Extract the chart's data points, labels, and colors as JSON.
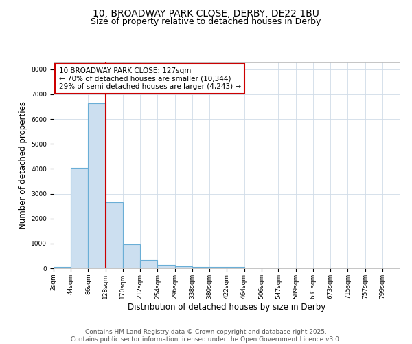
{
  "title_line1": "10, BROADWAY PARK CLOSE, DERBY, DE22 1BU",
  "title_line2": "Size of property relative to detached houses in Derby",
  "xlabel": "Distribution of detached houses by size in Derby",
  "ylabel": "Number of detached properties",
  "bin_edges": [
    2,
    44,
    86,
    128,
    170,
    212,
    254,
    296,
    338,
    380,
    422,
    464,
    506,
    547,
    589,
    631,
    673,
    715,
    757,
    799,
    841
  ],
  "bar_heights": [
    50,
    4050,
    6650,
    2650,
    980,
    340,
    130,
    80,
    50,
    50,
    55,
    0,
    0,
    0,
    0,
    0,
    0,
    0,
    0,
    0
  ],
  "bar_color": "#ccdff0",
  "bar_edge_color": "#6aaed6",
  "vline_x": 128,
  "vline_color": "#cc0000",
  "annotation_text": "10 BROADWAY PARK CLOSE: 127sqm\n← 70% of detached houses are smaller (10,344)\n29% of semi-detached houses are larger (4,243) →",
  "annotation_box_color": "#cc0000",
  "ylim": [
    0,
    8300
  ],
  "yticks": [
    0,
    1000,
    2000,
    3000,
    4000,
    5000,
    6000,
    7000,
    8000
  ],
  "background_color": "#ffffff",
  "axes_background": "#ffffff",
  "grid_color": "#d0dce8",
  "footer_line1": "Contains HM Land Registry data © Crown copyright and database right 2025.",
  "footer_line2": "Contains public sector information licensed under the Open Government Licence v3.0.",
  "title_fontsize": 10,
  "subtitle_fontsize": 9,
  "tick_fontsize": 6.5,
  "label_fontsize": 8.5,
  "annotation_fontsize": 7.5,
  "footer_fontsize": 6.5
}
